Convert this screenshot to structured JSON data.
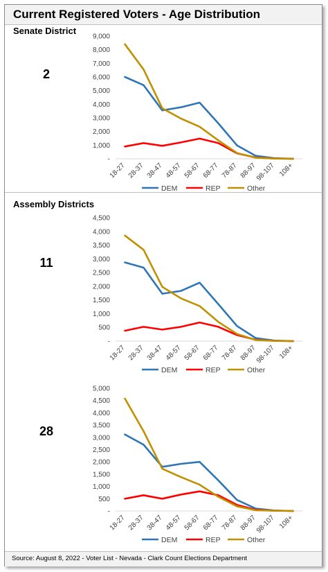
{
  "title": "Current Registered Voters - Age Distribution",
  "senate_label": "Senate District",
  "assembly_label": "Assembly Districts",
  "footer": "Source: August 8, 2022 - Voter List - Nevada - Clark Count Elections Department",
  "colors": {
    "DEM": "#2e75b6",
    "REP": "#ff0000",
    "Other": "#bf9000",
    "axis": "#d9d9d9"
  },
  "chart_data": [
    {
      "type": "line",
      "district": "2",
      "categories": [
        "18-27",
        "28-37",
        "38-47",
        "48-57",
        "58-67",
        "68-77",
        "78-87",
        "88-97",
        "98-107",
        "108+"
      ],
      "ylim": [
        0,
        9000
      ],
      "yticks": [
        "-",
        "1,000",
        "2,000",
        "3,000",
        "4,000",
        "5,000",
        "6,000",
        "7,000",
        "8,000",
        "9,000"
      ],
      "legend": "bottom",
      "series": [
        {
          "name": "DEM",
          "values": [
            6000,
            5400,
            3550,
            3780,
            4120,
            2600,
            980,
            220,
            40,
            0
          ]
        },
        {
          "name": "REP",
          "values": [
            900,
            1150,
            950,
            1200,
            1480,
            1150,
            400,
            90,
            20,
            0
          ]
        },
        {
          "name": "Other",
          "values": [
            8400,
            6550,
            3700,
            2950,
            2350,
            1350,
            420,
            80,
            15,
            0
          ]
        }
      ]
    },
    {
      "type": "line",
      "district": "11",
      "categories": [
        "18-27",
        "28-37",
        "38-47",
        "48-57",
        "58-67",
        "68-77",
        "78-87",
        "88-97",
        "98-107",
        "108+"
      ],
      "ylim": [
        0,
        4500
      ],
      "yticks": [
        "-",
        "500",
        "1,000",
        "1,500",
        "2,000",
        "2,500",
        "3,000",
        "3,500",
        "4,000",
        "4,500"
      ],
      "legend": "bottom",
      "series": [
        {
          "name": "DEM",
          "values": [
            2870,
            2680,
            1730,
            1830,
            2130,
            1350,
            550,
            110,
            20,
            0
          ]
        },
        {
          "name": "REP",
          "values": [
            380,
            520,
            420,
            520,
            680,
            520,
            220,
            50,
            10,
            0
          ]
        },
        {
          "name": "Other",
          "values": [
            3850,
            3330,
            1980,
            1560,
            1280,
            700,
            260,
            40,
            10,
            0
          ]
        }
      ]
    },
    {
      "type": "line",
      "district": "28",
      "categories": [
        "18-27",
        "28-37",
        "38-47",
        "48-57",
        "58-67",
        "68-77",
        "78-87",
        "88-97",
        "98-107",
        "108+"
      ],
      "ylim": [
        0,
        5000
      ],
      "yticks": [
        "-",
        "500",
        "1,000",
        "1,500",
        "2,000",
        "2,500",
        "3,000",
        "3,500",
        "4,000",
        "4,500",
        "5,000"
      ],
      "legend": "bottom",
      "series": [
        {
          "name": "DEM",
          "values": [
            3120,
            2700,
            1800,
            1920,
            2000,
            1250,
            450,
            100,
            20,
            0
          ]
        },
        {
          "name": "REP",
          "values": [
            500,
            640,
            500,
            670,
            800,
            640,
            250,
            50,
            10,
            0
          ]
        },
        {
          "name": "Other",
          "values": [
            4580,
            3250,
            1720,
            1380,
            1070,
            580,
            190,
            30,
            10,
            0
          ]
        }
      ]
    }
  ]
}
